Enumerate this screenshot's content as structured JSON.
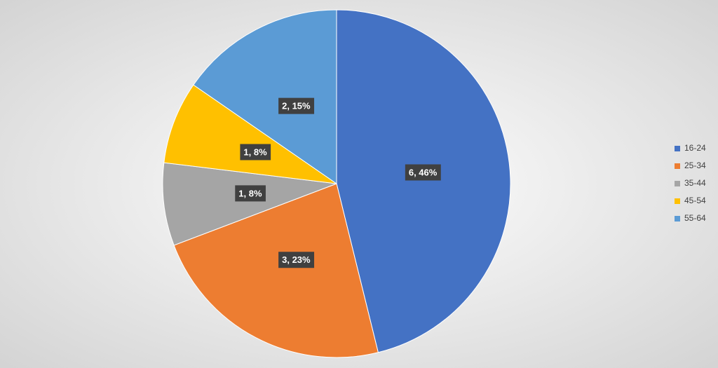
{
  "chart_data": {
    "type": "pie",
    "categories": [
      "16-24",
      "25-34",
      "35-44",
      "45-54",
      "55-64"
    ],
    "values": [
      6,
      3,
      1,
      1,
      2
    ],
    "value_labels": [
      "6, 46%",
      "3, 23%",
      "1, 8%",
      "1, 8%",
      "2, 15%"
    ],
    "colors": [
      "#4472c4",
      "#ed7d31",
      "#a5a5a5",
      "#ffc000",
      "#5b9bd5"
    ],
    "legend": "right"
  }
}
